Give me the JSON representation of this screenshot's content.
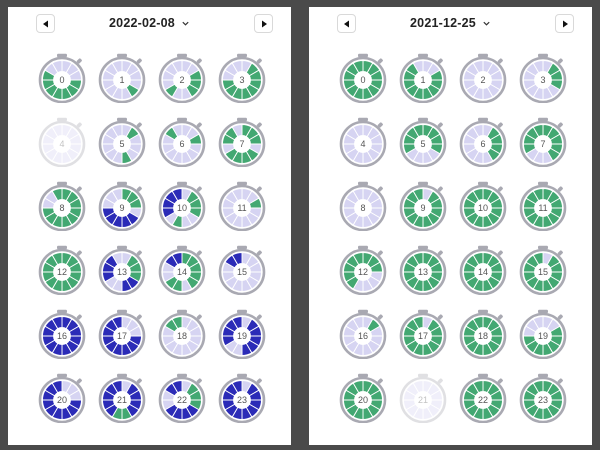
{
  "colors": {
    "empty": "#d6d4f2",
    "green": "#43a872",
    "blue": "#2b2bb7",
    "frame": "#a9a9b2"
  },
  "panels": [
    {
      "date": "2022-02-08",
      "hours": [
        {
          "label": "0",
          "faded": false,
          "segs": "EEEGGGGGGGEE"
        },
        {
          "label": "1",
          "faded": false,
          "segs": "EEEEGEEEEEEE"
        },
        {
          "label": "2",
          "faded": false,
          "segs": "EEGGGEEGEEEE"
        },
        {
          "label": "3",
          "faded": false,
          "segs": "EGGGGGGGGEEE"
        },
        {
          "label": "4",
          "faded": true,
          "segs": "EEEEEEEEEEEE"
        },
        {
          "label": "5",
          "faded": false,
          "segs": "EGEEEGEEEEEE"
        },
        {
          "label": "6",
          "faded": false,
          "segs": "EEGEEEEEEEGE"
        },
        {
          "label": "7",
          "faded": false,
          "segs": "GGGEGGGGEGGE"
        },
        {
          "label": "8",
          "faded": false,
          "segs": "GGGGGGGGGEEG"
        },
        {
          "label": "9",
          "faded": false,
          "segs": "GGGEBBBBBEEE"
        },
        {
          "label": "10",
          "faded": false,
          "segs": "EGGGEEGEBBBB"
        },
        {
          "label": "11",
          "faded": false,
          "segs": "EEGEEEEEEEEE"
        },
        {
          "label": "12",
          "faded": false,
          "segs": "GGGGGGGGGGGG"
        },
        {
          "label": "13",
          "faded": false,
          "segs": "EGGGBBEEBBBE"
        },
        {
          "label": "14",
          "faded": false,
          "segs": "GGGGGEGGEEBB"
        },
        {
          "label": "15",
          "faded": false,
          "segs": "EEEEEEEEEEBB"
        },
        {
          "label": "16",
          "faded": false,
          "segs": "BBBBBBBBBBBB"
        },
        {
          "label": "17",
          "faded": false,
          "segs": "EEEBBBBBBBBB"
        },
        {
          "label": "18",
          "faded": false,
          "segs": "EEEEEEEEEEGG"
        },
        {
          "label": "19",
          "faded": false,
          "segs": "EBBBBBEEBBBB"
        },
        {
          "label": "20",
          "faded": false,
          "segs": "EEEBBBBBBBBB"
        },
        {
          "label": "21",
          "faded": false,
          "segs": "EBBBBGGBBBBB"
        },
        {
          "label": "22",
          "faded": false,
          "segs": "EGGGBBBBEEBB"
        },
        {
          "label": "23",
          "faded": false,
          "segs": "EBBBBBBBBBBB"
        }
      ]
    },
    {
      "date": "2021-12-25",
      "hours": [
        {
          "label": "0",
          "faded": false,
          "segs": "GGGGGGGGGGGG"
        },
        {
          "label": "1",
          "faded": false,
          "segs": "EEGGGGGGGGGE"
        },
        {
          "label": "2",
          "faded": false,
          "segs": "EEEEEEEEEEEE"
        },
        {
          "label": "3",
          "faded": false,
          "segs": "EGGGEEEEEEEE"
        },
        {
          "label": "4",
          "faded": false,
          "segs": "EEEEEEEEEEEE"
        },
        {
          "label": "5",
          "faded": false,
          "segs": "GGGGEEEEGGGG"
        },
        {
          "label": "6",
          "faded": false,
          "segs": "EGGGGEEEEEEE"
        },
        {
          "label": "7",
          "faded": false,
          "segs": "GGGGGEEEGGGG"
        },
        {
          "label": "8",
          "faded": false,
          "segs": "EEEEEEEEEEEE"
        },
        {
          "label": "9",
          "faded": false,
          "segs": "EGGGGGGGGGGG"
        },
        {
          "label": "10",
          "faded": false,
          "segs": "GGGGGGGGGGGG"
        },
        {
          "label": "11",
          "faded": false,
          "segs": "GGGGGGGGGGGG"
        },
        {
          "label": "12",
          "faded": false,
          "segs": "GGGEEEEGGGGG"
        },
        {
          "label": "13",
          "faded": false,
          "segs": "GGGGGGGGGGGG"
        },
        {
          "label": "14",
          "faded": false,
          "segs": "GGGGGGGGGGGG"
        },
        {
          "label": "15",
          "faded": false,
          "segs": "EGGGGGGGGGGG"
        },
        {
          "label": "16",
          "faded": false,
          "segs": "EGEEEEEEEEEE"
        },
        {
          "label": "17",
          "faded": false,
          "segs": "EGGGGGGGGGGG"
        },
        {
          "label": "18",
          "faded": false,
          "segs": "GGGGGGGGGGGG"
        },
        {
          "label": "19",
          "faded": false,
          "segs": "EEGGGGGGGEEE"
        },
        {
          "label": "20",
          "faded": false,
          "segs": "GGGGGGGGGGGG"
        },
        {
          "label": "21",
          "faded": true,
          "segs": "EEEEEEEEEEEE"
        },
        {
          "label": "22",
          "faded": false,
          "segs": "GGGGGGGGGGGG"
        },
        {
          "label": "23",
          "faded": false,
          "segs": "GGGGGGGGGGGG"
        }
      ]
    }
  ],
  "icons": {
    "prev": "triangle-left-icon",
    "next": "triangle-right-icon",
    "dropdown": "chevron-down-icon",
    "timer": "stopwatch-icon"
  }
}
